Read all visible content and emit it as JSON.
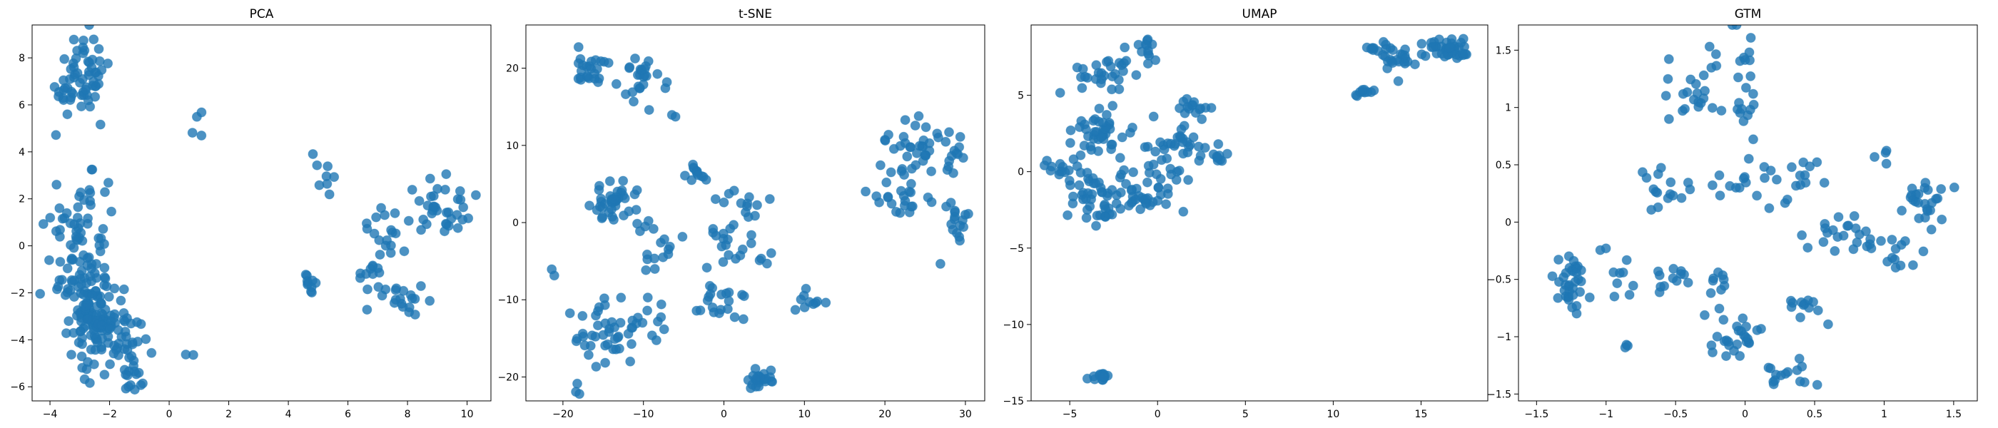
{
  "figure": {
    "point_color": "#1f77b4",
    "point_alpha": 0.8,
    "grid": false,
    "legend": "none"
  },
  "chart_data": [
    {
      "type": "scatter",
      "title": "PCA",
      "xlabel": "",
      "ylabel": "",
      "xlim": [
        -4.6,
        10.8
      ],
      "ylim": [
        -6.6,
        9.4
      ],
      "xticks": [
        -4,
        -2,
        0,
        2,
        4,
        6,
        8,
        10
      ],
      "yticks": [
        -6,
        -4,
        -2,
        0,
        2,
        4,
        6,
        8
      ],
      "clusters": [
        {
          "cx": -2.9,
          "cy": 7.2,
          "sx": 0.45,
          "sy": 0.9,
          "n": 55
        },
        {
          "cx": -3.5,
          "cy": 6.6,
          "sx": 0.3,
          "sy": 0.3,
          "n": 8
        },
        {
          "cx": -2.9,
          "cy": 0.6,
          "sx": 0.55,
          "sy": 1.3,
          "n": 60
        },
        {
          "cx": -2.8,
          "cy": -1.8,
          "sx": 0.6,
          "sy": 0.8,
          "n": 55
        },
        {
          "cx": -2.6,
          "cy": -3.2,
          "sx": 0.35,
          "sy": 0.5,
          "n": 55
        },
        {
          "cx": -1.9,
          "cy": -4.2,
          "sx": 0.6,
          "sy": 0.8,
          "n": 65
        },
        {
          "cx": -1.2,
          "cy": -5.6,
          "sx": 0.3,
          "sy": 0.4,
          "n": 10
        },
        {
          "cx": 0.8,
          "cy": -4.7,
          "sx": 0.15,
          "sy": 0.15,
          "n": 2
        },
        {
          "cx": 1.0,
          "cy": 5.3,
          "sx": 0.4,
          "sy": 0.3,
          "n": 4
        },
        {
          "cx": 4.8,
          "cy": -1.4,
          "sx": 0.3,
          "sy": 0.4,
          "n": 10
        },
        {
          "cx": 5.2,
          "cy": 2.9,
          "sx": 0.5,
          "sy": 0.5,
          "n": 8
        },
        {
          "cx": 7.0,
          "cy": -0.9,
          "sx": 0.4,
          "sy": 0.7,
          "n": 22
        },
        {
          "cx": 8.1,
          "cy": -2.4,
          "sx": 0.3,
          "sy": 0.4,
          "n": 14
        },
        {
          "cx": 9.0,
          "cy": 1.6,
          "sx": 0.6,
          "sy": 0.8,
          "n": 38
        },
        {
          "cx": 7.3,
          "cy": 1.0,
          "sx": 0.3,
          "sy": 0.5,
          "n": 8
        }
      ]
    },
    {
      "type": "scatter",
      "title": "t-SNE",
      "xlabel": "",
      "ylabel": "",
      "xlim": [
        -24.6,
        32.4
      ],
      "ylim": [
        -23.1,
        25.6
      ],
      "xticks": [
        -20,
        -10,
        0,
        10,
        20,
        30
      ],
      "yticks": [
        -20,
        -10,
        0,
        10,
        20
      ],
      "clusters": [
        {
          "cx": -16.5,
          "cy": 20.0,
          "sx": 1.3,
          "sy": 1.4,
          "n": 24
        },
        {
          "cx": -10.5,
          "cy": 18.5,
          "sx": 1.2,
          "sy": 2.2,
          "n": 24
        },
        {
          "cx": -6.5,
          "cy": 18.0,
          "sx": 1.0,
          "sy": 3.0,
          "n": 4
        },
        {
          "cx": -13.5,
          "cy": 2.2,
          "sx": 1.5,
          "sy": 1.2,
          "n": 40
        },
        {
          "cx": -8.5,
          "cy": -3.5,
          "sx": 1.4,
          "sy": 2.5,
          "n": 16
        },
        {
          "cx": -14.5,
          "cy": -14.5,
          "sx": 2.0,
          "sy": 2.3,
          "n": 40
        },
        {
          "cx": -9.5,
          "cy": -13.0,
          "sx": 1.5,
          "sy": 2.0,
          "n": 12
        },
        {
          "cx": -20.5,
          "cy": -6.5,
          "sx": 0.5,
          "sy": 0.5,
          "n": 2
        },
        {
          "cx": -17.5,
          "cy": -21.5,
          "sx": 0.5,
          "sy": 0.5,
          "n": 3
        },
        {
          "cx": -3.0,
          "cy": 6.5,
          "sx": 0.8,
          "sy": 0.6,
          "n": 12
        },
        {
          "cx": 1.0,
          "cy": -2.5,
          "sx": 2.0,
          "sy": 3.0,
          "n": 25
        },
        {
          "cx": 0.0,
          "cy": -10.0,
          "sx": 1.5,
          "sy": 1.2,
          "n": 20
        },
        {
          "cx": 3.0,
          "cy": 2.5,
          "sx": 1.5,
          "sy": 2.0,
          "n": 10
        },
        {
          "cx": 4.5,
          "cy": -20.3,
          "sx": 0.8,
          "sy": 0.6,
          "n": 25
        },
        {
          "cx": 10.5,
          "cy": -10.2,
          "sx": 1.0,
          "sy": 0.8,
          "n": 10
        },
        {
          "cx": 24.5,
          "cy": 10.0,
          "sx": 2.0,
          "sy": 1.8,
          "n": 35
        },
        {
          "cx": 28.5,
          "cy": 9.0,
          "sx": 0.8,
          "sy": 1.5,
          "n": 8
        },
        {
          "cx": 22.0,
          "cy": 3.0,
          "sx": 2.0,
          "sy": 2.0,
          "n": 25
        },
        {
          "cx": 28.5,
          "cy": 0.0,
          "sx": 1.0,
          "sy": 2.0,
          "n": 18
        }
      ]
    },
    {
      "type": "scatter",
      "title": "UMAP",
      "xlabel": "",
      "ylabel": "",
      "xlim": [
        -7.2,
        18.8
      ],
      "ylim": [
        -15.0,
        9.6
      ],
      "xticks": [
        -5,
        0,
        5,
        10,
        15
      ],
      "yticks": [
        -15,
        -10,
        -5,
        0,
        5
      ],
      "clusters": [
        {
          "cx": -3.0,
          "cy": 6.3,
          "sx": 1.0,
          "sy": 0.7,
          "n": 30
        },
        {
          "cx": -0.7,
          "cy": 7.8,
          "sx": 0.2,
          "sy": 0.5,
          "n": 12
        },
        {
          "cx": -3.5,
          "cy": 2.5,
          "sx": 0.8,
          "sy": 0.6,
          "n": 40
        },
        {
          "cx": -5.5,
          "cy": 0.4,
          "sx": 0.5,
          "sy": 0.4,
          "n": 15
        },
        {
          "cx": -2.5,
          "cy": -1.5,
          "sx": 1.5,
          "sy": 0.8,
          "n": 60
        },
        {
          "cx": -3.3,
          "cy": -3.0,
          "sx": 0.4,
          "sy": 0.4,
          "n": 10
        },
        {
          "cx": -0.7,
          "cy": -2.0,
          "sx": 0.4,
          "sy": 0.4,
          "n": 10
        },
        {
          "cx": 1.0,
          "cy": 1.5,
          "sx": 1.2,
          "sy": 1.0,
          "n": 40
        },
        {
          "cx": 2.0,
          "cy": 4.3,
          "sx": 0.5,
          "sy": 0.4,
          "n": 15
        },
        {
          "cx": 3.5,
          "cy": 0.9,
          "sx": 0.3,
          "sy": 0.2,
          "n": 8
        },
        {
          "cx": -3.3,
          "cy": -13.5,
          "sx": 0.3,
          "sy": 0.2,
          "n": 15
        },
        {
          "cx": 11.8,
          "cy": 5.2,
          "sx": 0.3,
          "sy": 0.2,
          "n": 10
        },
        {
          "cx": 12.5,
          "cy": 8.0,
          "sx": 0.5,
          "sy": 0.2,
          "n": 10
        },
        {
          "cx": 13.7,
          "cy": 7.3,
          "sx": 0.6,
          "sy": 0.6,
          "n": 20
        },
        {
          "cx": 16.5,
          "cy": 7.9,
          "sx": 0.7,
          "sy": 0.4,
          "n": 40
        }
      ]
    },
    {
      "type": "scatter",
      "title": "GTM",
      "xlabel": "",
      "ylabel": "",
      "xlim": [
        -1.63,
        1.67
      ],
      "ylim": [
        -1.56,
        1.72
      ],
      "xticks": [
        -1.5,
        -1.0,
        -0.5,
        0.0,
        0.5,
        1.0,
        1.5
      ],
      "yticks": [
        -1.5,
        -1.0,
        -0.5,
        0.0,
        0.5,
        1.0,
        1.5
      ],
      "clusters": [
        {
          "cx": -1.25,
          "cy": -0.55,
          "sx": 0.06,
          "sy": 0.12,
          "n": 35
        },
        {
          "cx": -0.95,
          "cy": -0.45,
          "sx": 0.08,
          "sy": 0.15,
          "n": 10
        },
        {
          "cx": -0.85,
          "cy": -1.08,
          "sx": 0.01,
          "sy": 0.02,
          "n": 3
        },
        {
          "cx": -0.6,
          "cy": 0.25,
          "sx": 0.1,
          "sy": 0.12,
          "n": 15
        },
        {
          "cx": -0.55,
          "cy": -0.5,
          "sx": 0.1,
          "sy": 0.08,
          "n": 12
        },
        {
          "cx": -0.35,
          "cy": 1.05,
          "sx": 0.1,
          "sy": 0.15,
          "n": 20
        },
        {
          "cx": -0.2,
          "cy": -0.5,
          "sx": 0.05,
          "sy": 0.1,
          "n": 10
        },
        {
          "cx": 0.0,
          "cy": 1.2,
          "sx": 0.05,
          "sy": 0.25,
          "n": 20
        },
        {
          "cx": 0.0,
          "cy": 0.35,
          "sx": 0.15,
          "sy": 0.15,
          "n": 20
        },
        {
          "cx": -0.05,
          "cy": -1.0,
          "sx": 0.12,
          "sy": 0.1,
          "n": 25
        },
        {
          "cx": 0.4,
          "cy": -0.7,
          "sx": 0.08,
          "sy": 0.08,
          "n": 12
        },
        {
          "cx": 0.35,
          "cy": -1.35,
          "sx": 0.12,
          "sy": 0.08,
          "n": 15
        },
        {
          "cx": 0.4,
          "cy": 0.45,
          "sx": 0.07,
          "sy": 0.1,
          "n": 10
        },
        {
          "cx": 0.72,
          "cy": -0.1,
          "sx": 0.12,
          "sy": 0.1,
          "n": 15
        },
        {
          "cx": 1.0,
          "cy": -0.2,
          "sx": 0.2,
          "sy": 0.1,
          "n": 20
        },
        {
          "cx": 1.3,
          "cy": 0.2,
          "sx": 0.07,
          "sy": 0.12,
          "n": 25
        },
        {
          "cx": 1.0,
          "cy": 0.57,
          "sx": 0.04,
          "sy": 0.04,
          "n": 4
        },
        {
          "cx": -0.25,
          "cy": 1.45,
          "sx": 0.05,
          "sy": 0.05,
          "n": 4
        }
      ]
    }
  ]
}
